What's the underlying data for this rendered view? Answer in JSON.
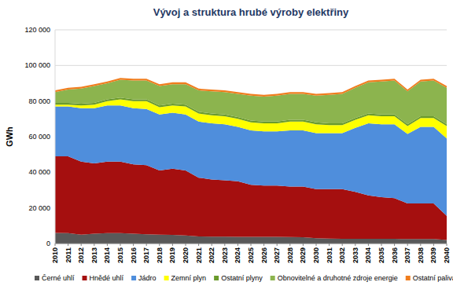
{
  "chart_data": {
    "type": "area",
    "stacked": true,
    "grid": true,
    "legend": "bottom",
    "title": "Vývoj a struktura hrubé výroby elektřiny",
    "y_label": "GWh",
    "categories": [
      "2010",
      "2011",
      "2012",
      "2013",
      "2014",
      "2015",
      "2016",
      "2017",
      "2018",
      "2019",
      "2020",
      "2021",
      "2022",
      "2023",
      "2024",
      "2025",
      "2026",
      "2027",
      "2028",
      "2029",
      "2030",
      "2031",
      "2032",
      "2033",
      "2034",
      "2035",
      "2036",
      "2037",
      "2038",
      "2039",
      "2040"
    ],
    "ylim": [
      0,
      120000
    ],
    "yticks": [
      {
        "value": 0,
        "label": "0"
      },
      {
        "value": 20000,
        "label": "20 000"
      },
      {
        "value": 40000,
        "label": "40 000"
      },
      {
        "value": 60000,
        "label": "60 000"
      },
      {
        "value": 80000,
        "label": "80 000"
      },
      {
        "value": 100000,
        "label": "100 000"
      },
      {
        "value": 120000,
        "label": "120 000"
      }
    ],
    "series": [
      {
        "name": "Černé uhlí",
        "color": "#595959",
        "values": [
          6000,
          5800,
          5000,
          5500,
          5800,
          5800,
          5500,
          5200,
          5000,
          4800,
          4500,
          4000,
          3900,
          3900,
          3800,
          3800,
          3800,
          3700,
          3600,
          3500,
          3000,
          2800,
          2700,
          2700,
          2600,
          2600,
          2600,
          2500,
          2500,
          2500,
          2000
        ]
      },
      {
        "name": "Hnědé uhlí",
        "color": "#a50f0f",
        "values": [
          43000,
          43200,
          41000,
          39500,
          40200,
          40200,
          39000,
          38800,
          36000,
          37200,
          36500,
          33000,
          32100,
          31600,
          31200,
          29200,
          28700,
          28800,
          28400,
          28500,
          27500,
          27700,
          27800,
          26300,
          24400,
          23400,
          22900,
          20000,
          20000,
          20000,
          13500
        ]
      },
      {
        "name": "Jádro",
        "color": "#4f8edc",
        "values": [
          28000,
          28000,
          30000,
          31000,
          31500,
          31500,
          31500,
          31500,
          31500,
          31500,
          31500,
          31500,
          31500,
          31500,
          30500,
          30500,
          30500,
          30500,
          31500,
          31500,
          31500,
          31500,
          31500,
          36000,
          40500,
          41000,
          41500,
          39000,
          43000,
          43000,
          43500
        ]
      },
      {
        "name": "Zemní plyn",
        "color": "#ffff00",
        "values": [
          1000,
          1000,
          1500,
          2000,
          2500,
          3500,
          4000,
          4500,
          4000,
          4000,
          4500,
          4500,
          4500,
          4500,
          4500,
          4500,
          4500,
          4500,
          5000,
          5000,
          5000,
          4500,
          4500,
          4500,
          4500,
          4500,
          4500,
          4500,
          5000,
          5000,
          7000
        ]
      },
      {
        "name": "Ostatní plyny",
        "color": "#6a9a2c",
        "values": [
          1000,
          1000,
          1000,
          1000,
          1000,
          1000,
          1000,
          1000,
          1000,
          1000,
          1000,
          1000,
          1000,
          1000,
          1000,
          1000,
          1000,
          1000,
          1000,
          1000,
          1000,
          1000,
          1000,
          1000,
          1000,
          1000,
          1000,
          1000,
          1000,
          1000,
          1000
        ]
      },
      {
        "name": "Obnovitelné a druhotné zdroje energie",
        "color": "#8cb44e",
        "values": [
          6000,
          7500,
          8500,
          9500,
          9000,
          10000,
          10500,
          10500,
          11000,
          11000,
          11500,
          12000,
          12500,
          12500,
          13000,
          14000,
          14000,
          14500,
          14500,
          14500,
          15000,
          16000,
          16500,
          17000,
          17500,
          18500,
          19000,
          18500,
          19500,
          20000,
          20500
        ]
      },
      {
        "name": "Ostatní paliva",
        "color": "#f07d1e",
        "values": [
          1000,
          1000,
          1000,
          1000,
          1000,
          1000,
          1000,
          1000,
          1000,
          1000,
          1000,
          1000,
          1000,
          1000,
          1000,
          1000,
          1000,
          1000,
          1000,
          1000,
          1000,
          1000,
          1000,
          1000,
          1000,
          1000,
          1000,
          1000,
          1000,
          1000,
          1000
        ]
      }
    ]
  }
}
